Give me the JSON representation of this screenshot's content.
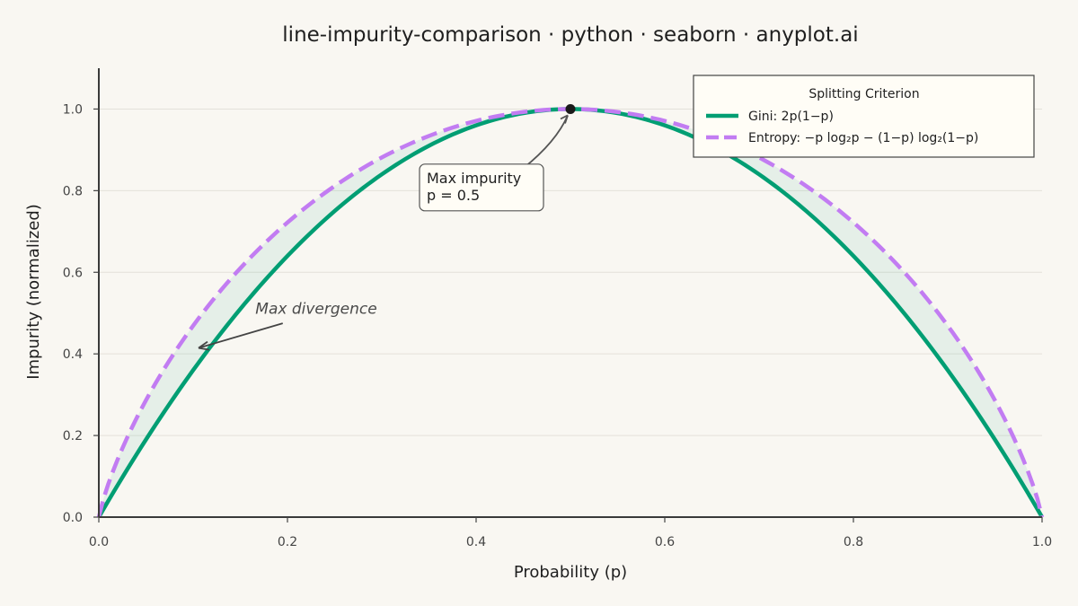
{
  "chart_data": {
    "type": "line",
    "title": "line-impurity-comparison · python · seaborn · anyplot.ai",
    "xlabel": "Probability (p)",
    "ylabel": "Impurity (normalized)",
    "xlim": [
      0.0,
      1.0
    ],
    "ylim": [
      0.0,
      1.1
    ],
    "x_ticks": [
      "0.0",
      "0.2",
      "0.4",
      "0.6",
      "0.8",
      "1.0"
    ],
    "y_ticks": [
      "0.0",
      "0.2",
      "0.4",
      "0.6",
      "0.8",
      "1.0"
    ],
    "grid": "horizontal",
    "legend": {
      "title": "Splitting Criterion",
      "placement": "top-right"
    },
    "series": [
      {
        "name": "Gini: 2p(1−p)",
        "color": "#009e73",
        "style": "solid",
        "x": [
          0.0,
          0.05,
          0.1,
          0.15,
          0.2,
          0.25,
          0.3,
          0.35,
          0.4,
          0.45,
          0.5,
          0.55,
          0.6,
          0.65,
          0.7,
          0.75,
          0.8,
          0.85,
          0.9,
          0.95,
          1.0
        ],
        "values": [
          0.0,
          0.19,
          0.36,
          0.51,
          0.64,
          0.75,
          0.84,
          0.91,
          0.96,
          0.99,
          1.0,
          0.99,
          0.96,
          0.91,
          0.84,
          0.75,
          0.64,
          0.51,
          0.36,
          0.19,
          0.0
        ]
      },
      {
        "name": "Entropy: −p log₂p − (1−p) log₂(1−p)",
        "color": "#c27cf2",
        "style": "dashed",
        "x": [
          0.0,
          0.05,
          0.1,
          0.15,
          0.2,
          0.25,
          0.3,
          0.35,
          0.4,
          0.45,
          0.5,
          0.55,
          0.6,
          0.65,
          0.7,
          0.75,
          0.8,
          0.85,
          0.9,
          0.95,
          1.0
        ],
        "values": [
          0.0,
          0.286,
          0.469,
          0.61,
          0.722,
          0.811,
          0.881,
          0.934,
          0.971,
          0.993,
          1.0,
          0.993,
          0.971,
          0.934,
          0.881,
          0.811,
          0.722,
          0.61,
          0.469,
          0.286,
          0.0
        ]
      }
    ],
    "fill_between": {
      "color": "#009e73",
      "opacity": 0.08
    },
    "annotations": [
      {
        "name": "max-impurity",
        "text_lines": [
          "Max impurity",
          "p = 0.5"
        ],
        "point": [
          0.5,
          1.0
        ],
        "text_pos": [
          0.34,
          0.83
        ]
      },
      {
        "name": "max-divergence",
        "text": "Max divergence",
        "point": [
          0.1,
          0.41
        ],
        "text_pos": [
          0.166,
          0.5
        ]
      }
    ]
  }
}
